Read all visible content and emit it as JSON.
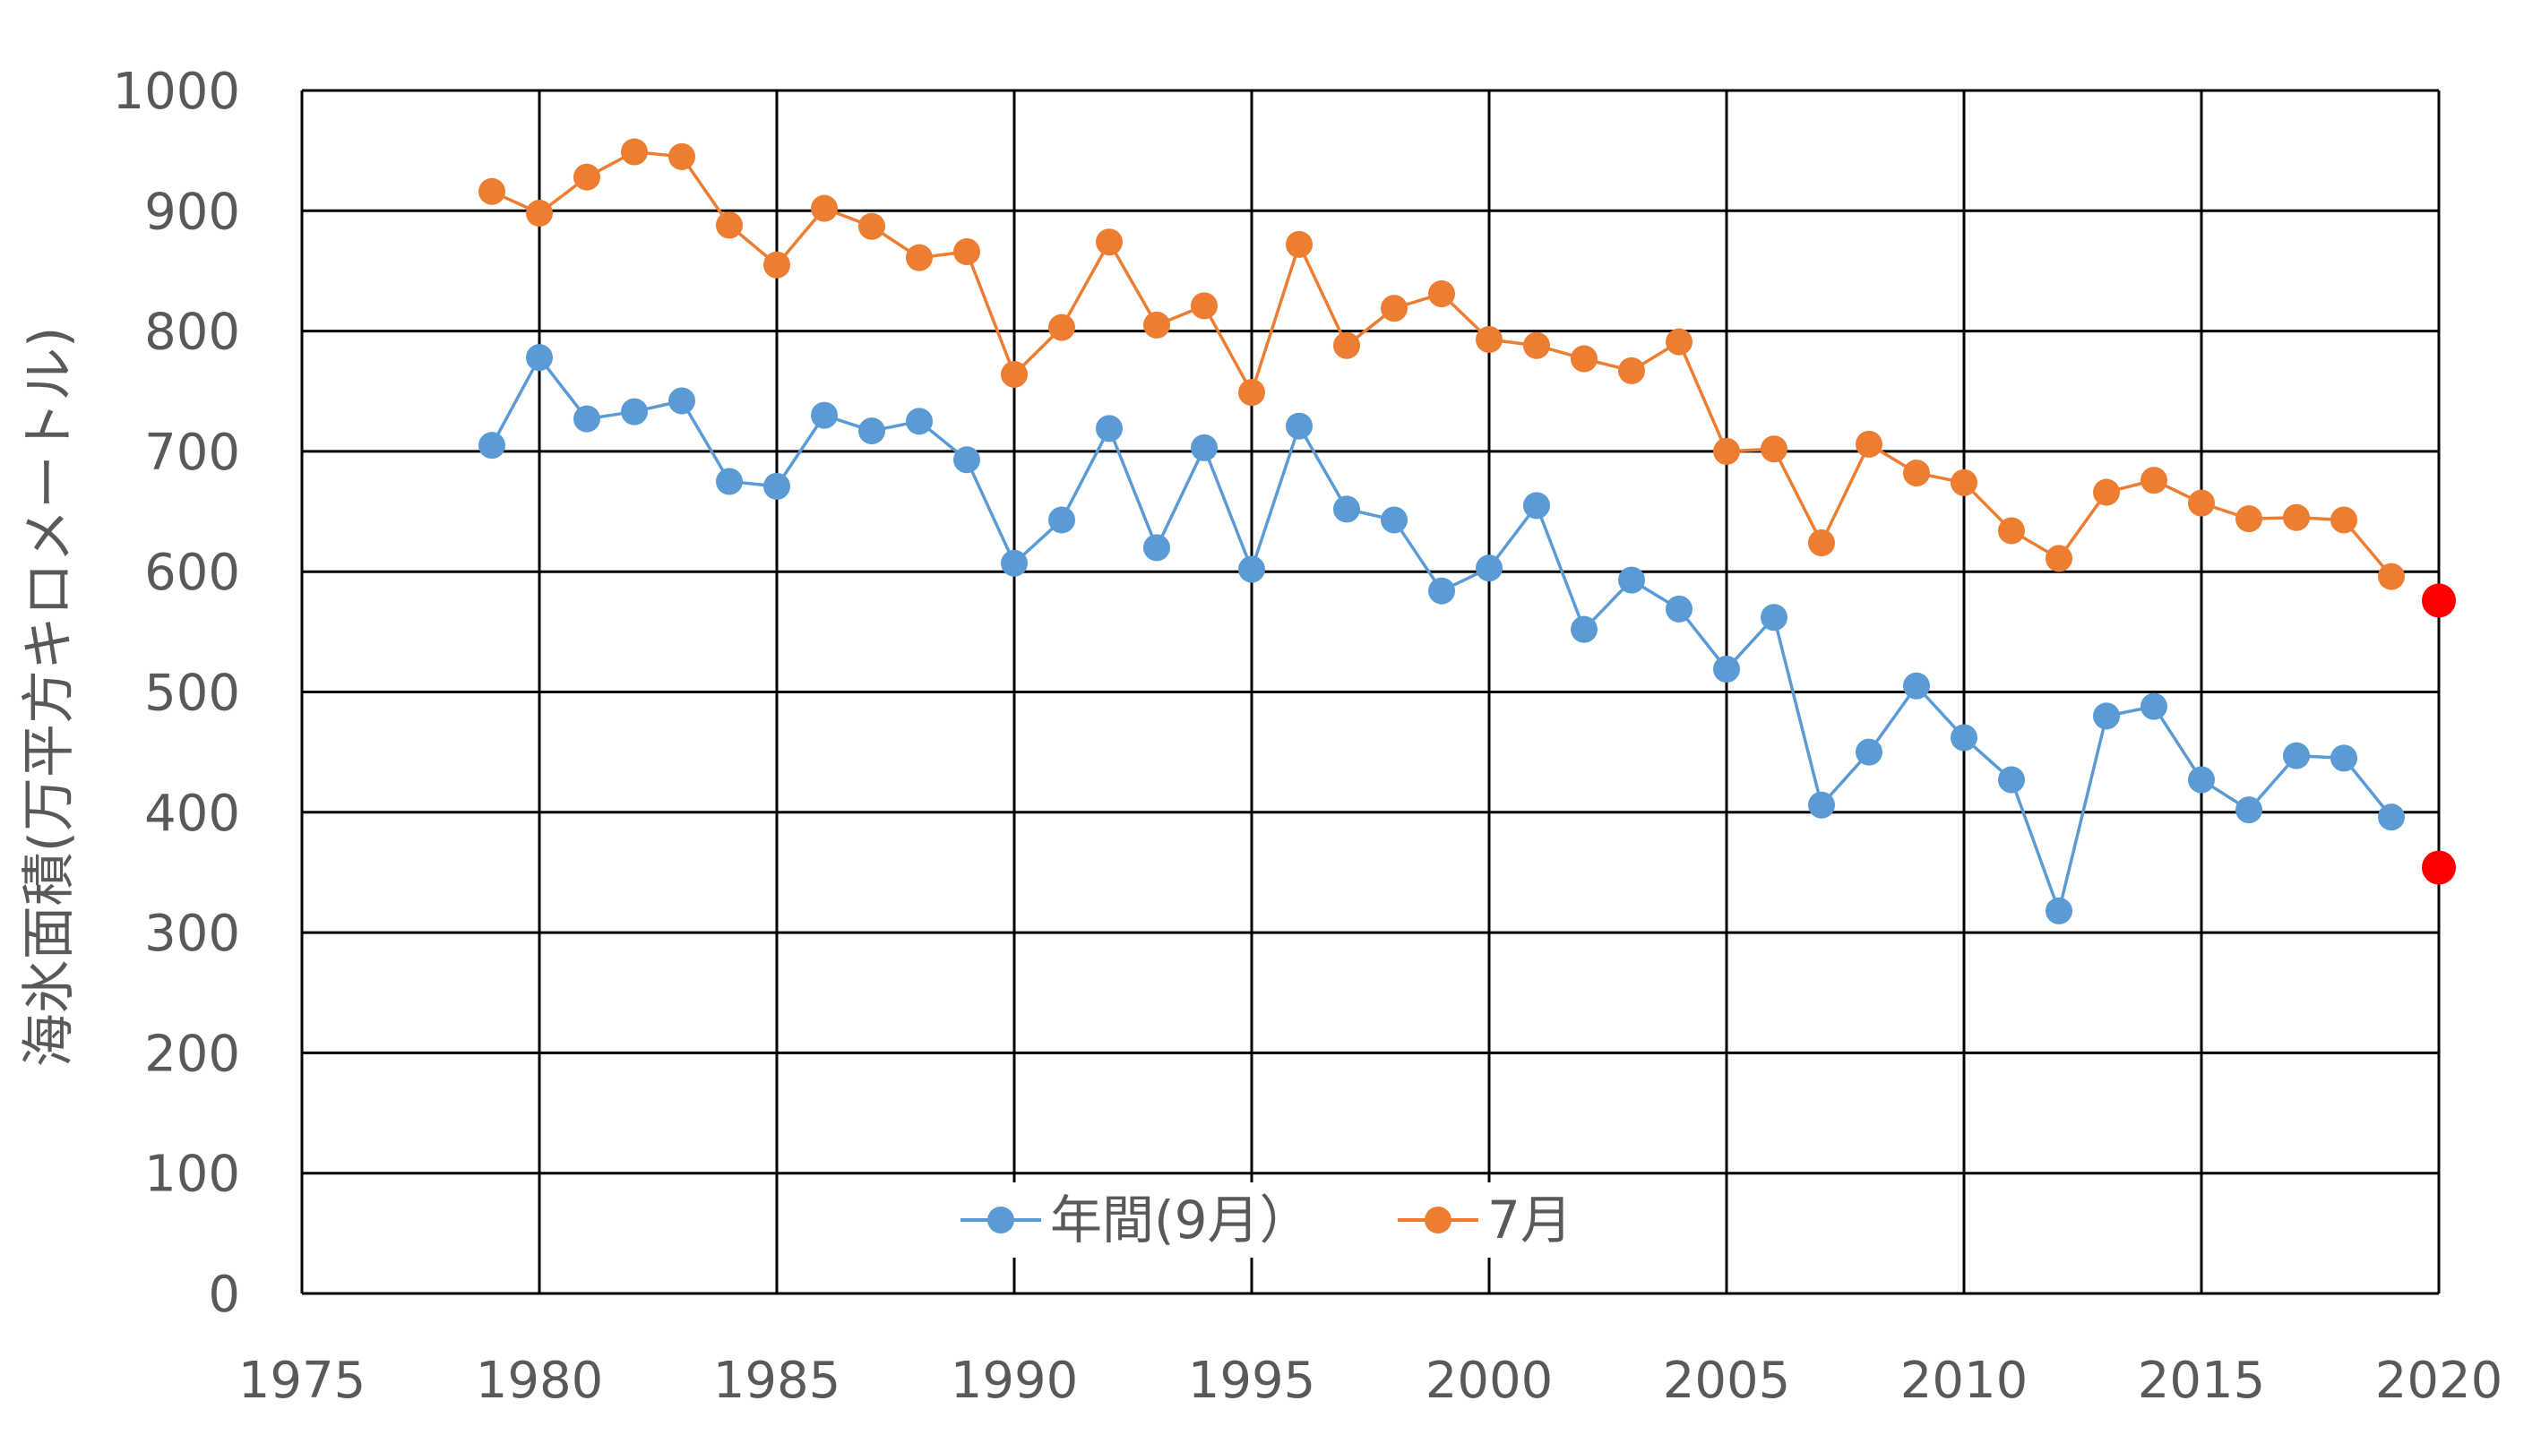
{
  "chart_data": {
    "type": "line",
    "title": "",
    "xlabel": "",
    "ylabel": "海氷面積(万平方キロメートル)",
    "xlim": [
      1975,
      2020
    ],
    "ylim": [
      0,
      1000
    ],
    "x_ticks": [
      1975,
      1980,
      1985,
      1990,
      1995,
      2000,
      2005,
      2010,
      2015,
      2020
    ],
    "y_ticks": [
      0,
      100,
      200,
      300,
      400,
      500,
      600,
      700,
      800,
      900,
      1000
    ],
    "grid": true,
    "legend_position": "bottom-center",
    "series": [
      {
        "name": "年間(9月）",
        "color": "#5B9BD5",
        "x": [
          1979,
          1980,
          1981,
          1982,
          1983,
          1984,
          1985,
          1986,
          1987,
          1988,
          1989,
          1990,
          1991,
          1992,
          1993,
          1994,
          1995,
          1996,
          1997,
          1998,
          1999,
          2000,
          2001,
          2002,
          2003,
          2004,
          2005,
          2006,
          2007,
          2008,
          2009,
          2010,
          2011,
          2012,
          2013,
          2014,
          2015,
          2016,
          2017,
          2018,
          2019
        ],
        "values": [
          705,
          778,
          727,
          733,
          742,
          675,
          671,
          730,
          717,
          725,
          693,
          607,
          643,
          719,
          620,
          703,
          602,
          721,
          652,
          643,
          584,
          603,
          655,
          552,
          593,
          569,
          519,
          562,
          406,
          450,
          505,
          462,
          427,
          318,
          480,
          488,
          427,
          402,
          447,
          445,
          396
        ]
      },
      {
        "name": "7月",
        "color": "#ED7D31",
        "x": [
          1979,
          1980,
          1981,
          1982,
          1983,
          1984,
          1985,
          1986,
          1987,
          1988,
          1989,
          1990,
          1991,
          1992,
          1993,
          1994,
          1995,
          1996,
          1997,
          1998,
          1999,
          2000,
          2001,
          2002,
          2003,
          2004,
          2005,
          2006,
          2007,
          2008,
          2009,
          2010,
          2011,
          2012,
          2013,
          2014,
          2015,
          2016,
          2017,
          2018,
          2019
        ],
        "values": [
          916,
          898,
          928,
          949,
          945,
          888,
          855,
          902,
          887,
          861,
          866,
          764,
          803,
          874,
          805,
          821,
          749,
          872,
          788,
          819,
          831,
          793,
          788,
          777,
          767,
          791,
          700,
          702,
          624,
          706,
          682,
          674,
          634,
          611,
          666,
          676,
          657,
          644,
          645,
          643,
          596
        ]
      }
    ],
    "highlight_points": [
      {
        "x": 2020,
        "y": 576,
        "color": "#FF0000"
      },
      {
        "x": 2020,
        "y": 354,
        "color": "#FF0000"
      }
    ]
  }
}
